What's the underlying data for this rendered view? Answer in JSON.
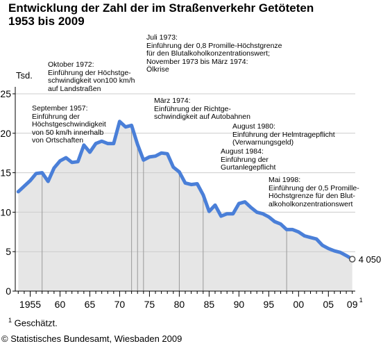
{
  "title": {
    "line1": "Entwicklung der Zahl der im Straßenverkehr Getöteten",
    "line2": "1953 bis 2009"
  },
  "chart_data": {
    "type": "area",
    "ylabel": "Tsd.",
    "ylim": [
      0,
      25
    ],
    "yticks": [
      "0",
      "5",
      "10",
      "15",
      "20",
      "25"
    ],
    "xlim": [
      1952.5,
      2009.5
    ],
    "xtick_labels": [
      {
        "year": 1955,
        "label": "1955"
      },
      {
        "year": 1960,
        "label": "60"
      },
      {
        "year": 1965,
        "label": "65"
      },
      {
        "year": 1970,
        "label": "70"
      },
      {
        "year": 1975,
        "label": "75"
      },
      {
        "year": 1980,
        "label": "80"
      },
      {
        "year": 1985,
        "label": "85"
      },
      {
        "year": 1990,
        "label": "90"
      },
      {
        "year": 1995,
        "label": "95"
      },
      {
        "year": 2000,
        "label": "00"
      },
      {
        "year": 2005,
        "label": "05"
      },
      {
        "year": 2009,
        "label": "09",
        "sup": "1"
      }
    ],
    "grid": true,
    "series": [
      {
        "x": [
          1953,
          1954,
          1955,
          1956,
          1957,
          1958,
          1959,
          1960,
          1961,
          1962,
          1963,
          1964,
          1965,
          1966,
          1967,
          1968,
          1969,
          1970,
          1971,
          1972,
          1973,
          1974,
          1975,
          1976,
          1977,
          1978,
          1979,
          1980,
          1981,
          1982,
          1983,
          1984,
          1985,
          1986,
          1987,
          1988,
          1989,
          1990,
          1991,
          1992,
          1993,
          1994,
          1995,
          1996,
          1997,
          1998,
          1999,
          2000,
          2001,
          2002,
          2003,
          2004,
          2005,
          2006,
          2007,
          2008,
          2009
        ],
        "y": [
          12.6,
          13.3,
          14.0,
          14.9,
          15.0,
          13.9,
          15.6,
          16.5,
          16.9,
          16.3,
          16.4,
          18.5,
          17.6,
          18.7,
          19.0,
          18.7,
          18.7,
          21.5,
          20.8,
          21.0,
          18.6,
          16.6,
          17.0,
          17.1,
          17.5,
          17.4,
          15.7,
          15.1,
          13.7,
          13.5,
          13.6,
          12.2,
          10.1,
          10.9,
          9.5,
          9.8,
          9.8,
          11.1,
          11.3,
          10.6,
          10.0,
          9.8,
          9.4,
          8.8,
          8.5,
          7.8,
          7.8,
          7.5,
          7.0,
          6.8,
          6.6,
          5.8,
          5.4,
          5.1,
          4.9,
          4.5,
          4.05
        ]
      }
    ],
    "end_label": "4 050",
    "events": [
      {
        "year": 1957,
        "text": "September 1957:\nEinführung der\nHöchstgeschwindigkeit\nvon 50 km/h innerhalb\nvon Ortschaften"
      },
      {
        "year": 1972,
        "text": "Oktober 1972:\nEinführung der Höchstge-\nschwindigkeit von100 km/h\nauf Landstraßen"
      },
      {
        "year": 1973,
        "text": "Juli 1973:\nEinführung der 0,8 Promille-Höchstgrenze\nfür den Blutalkoholkonzentrationswert;\nNovember 1973 bis März 1974:\nÖlkrise"
      },
      {
        "year": 1974,
        "text": "März 1974:\nEinführung der Richtge-\nschwindigkeit auf Autobahnen"
      },
      {
        "year": 1980,
        "text": "August 1980:\nEinführung der Helmtragepflicht\n(Verwarnungsgeld)"
      },
      {
        "year": 1984,
        "text": "August 1984:\nEinführung der\nGurtanlegepflicht"
      },
      {
        "year": 1998,
        "text": "Mai 1998:\nEinführung der 0,5 Promille-\nHöchstgrenze für den Blut-\nalkoholkonzentrationswert"
      }
    ]
  },
  "footnote": {
    "marker": "1",
    "text": "Geschätzt."
  },
  "source": "© Statistisches Bundesamt, Wiesbaden 2009",
  "colors": {
    "line": "#4a7fd8",
    "fill": "#e6e6e6",
    "axis": "#000000",
    "grid": "#cccccc",
    "event_line": "#999999"
  }
}
